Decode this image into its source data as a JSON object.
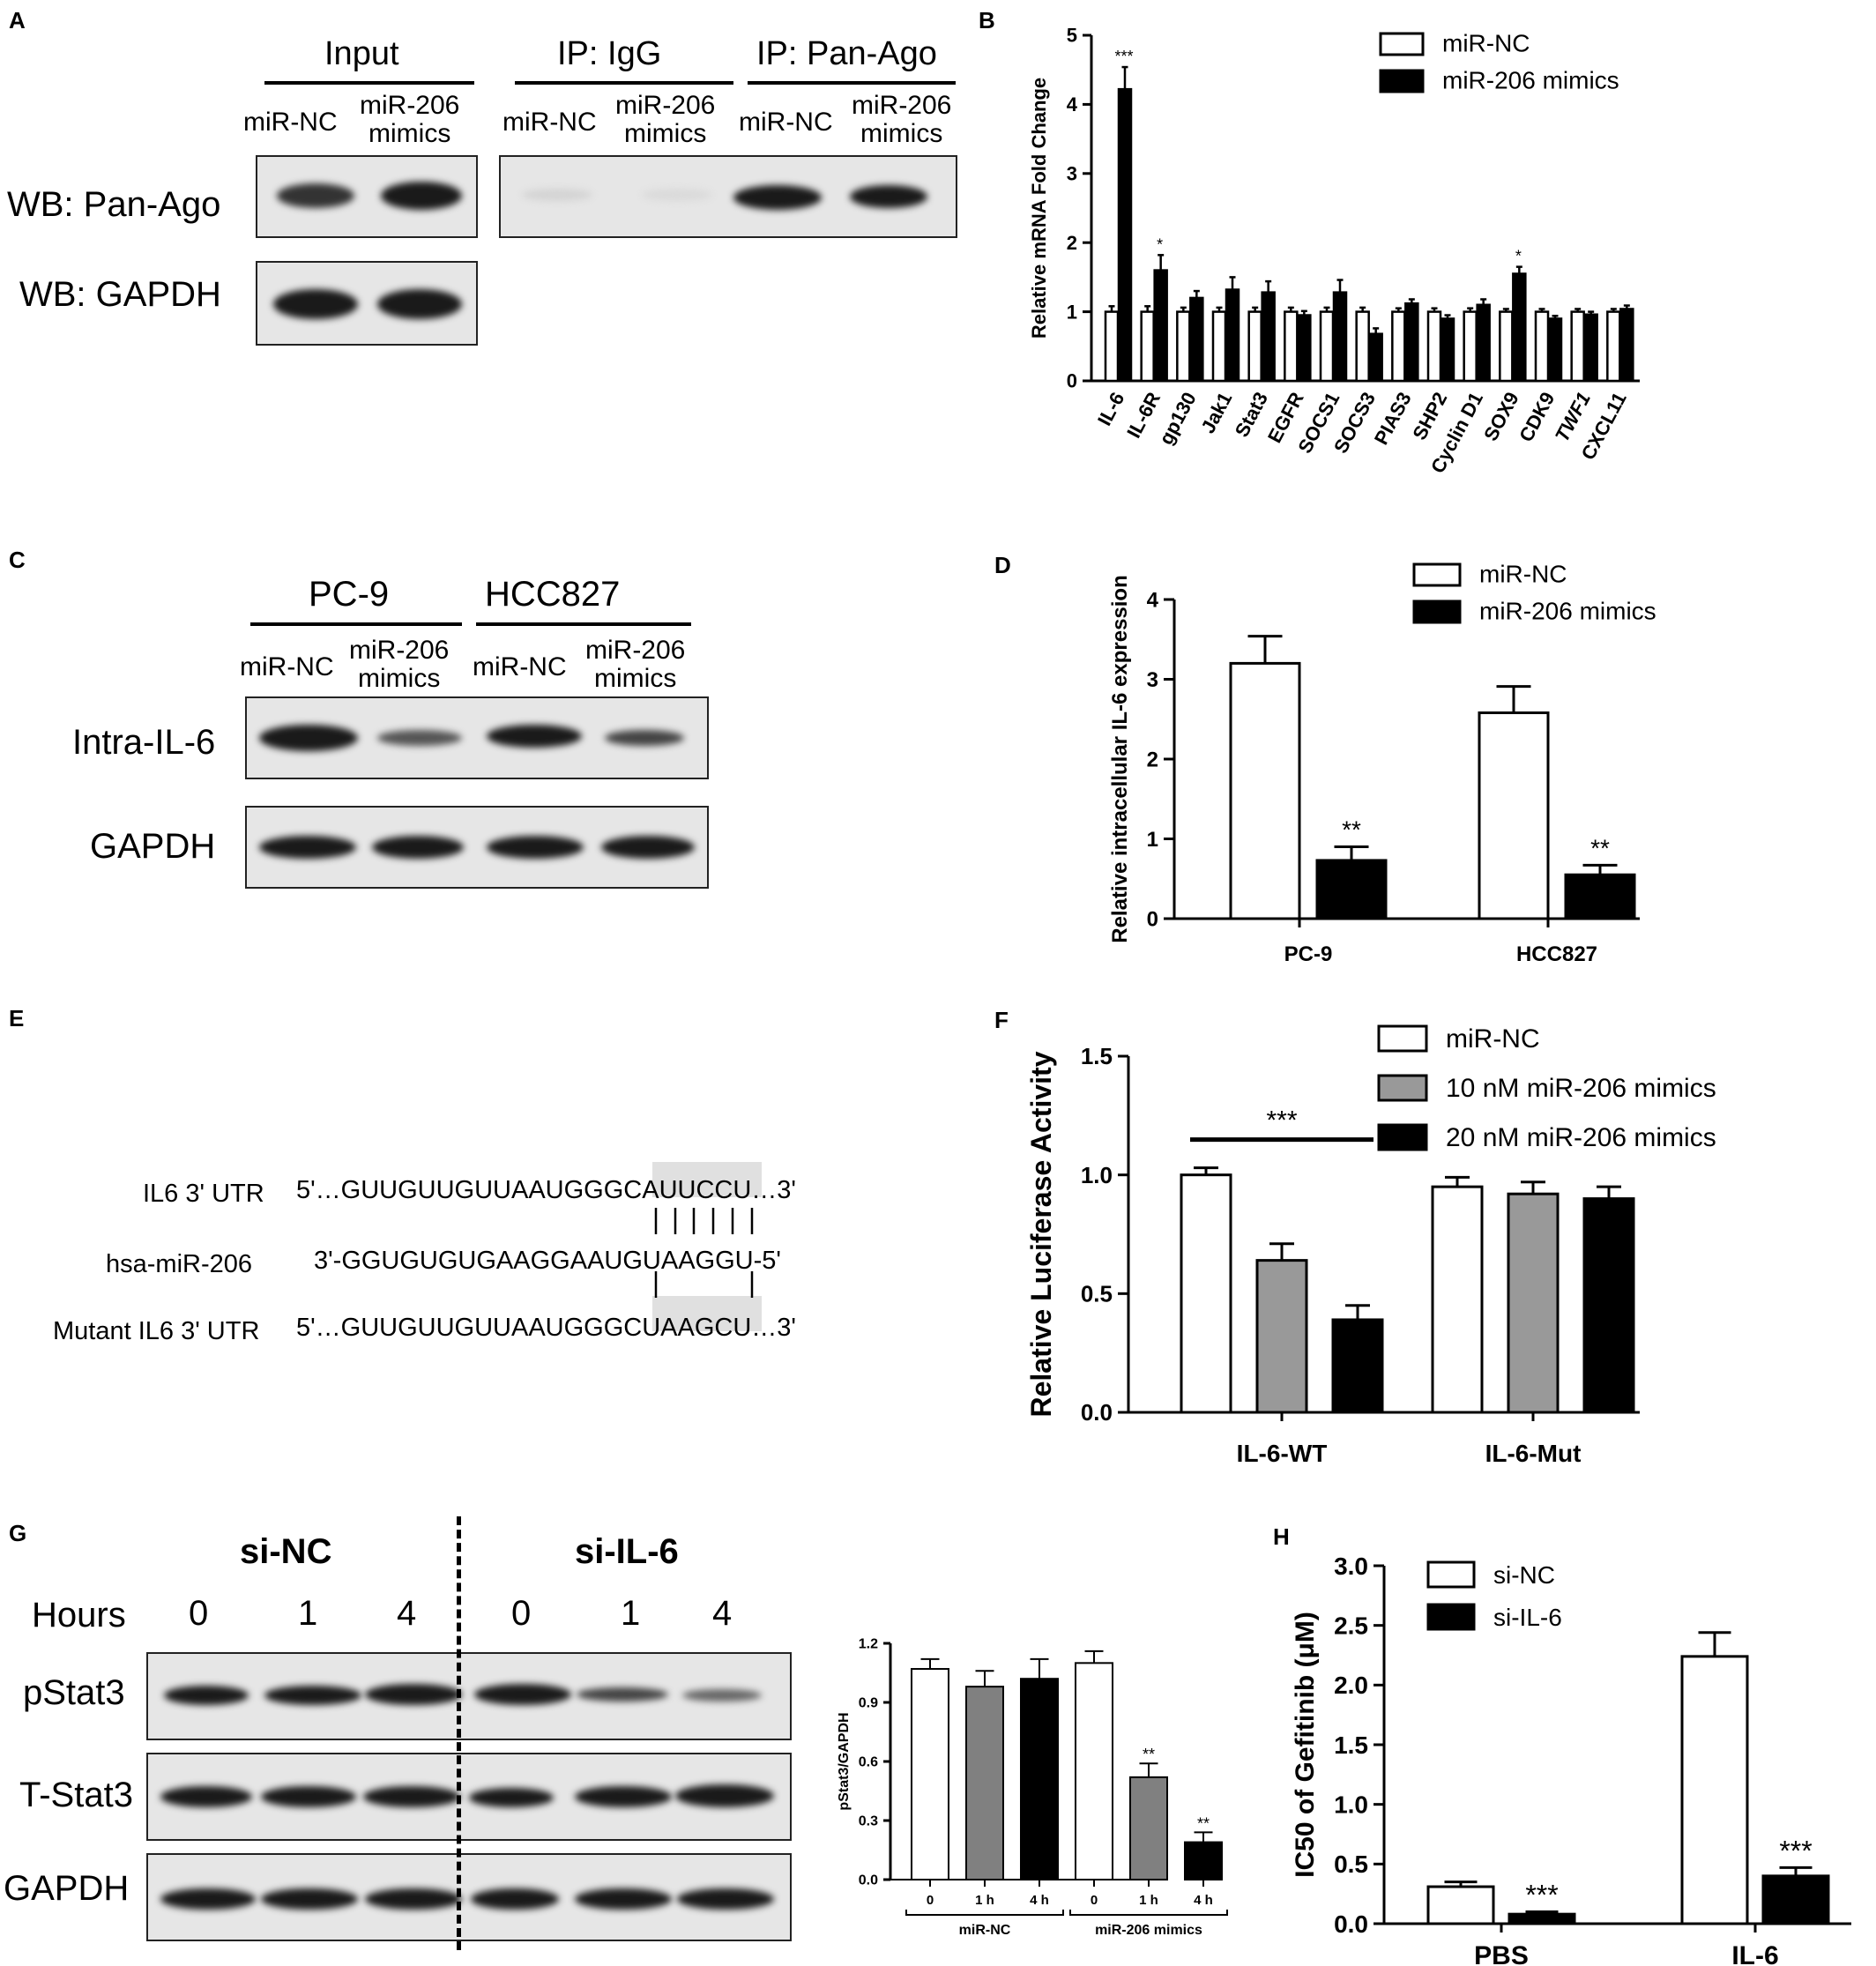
{
  "panel_A": {
    "letter": "A",
    "headers": [
      "Input",
      "IP: IgG",
      "IP: Pan-Ago"
    ],
    "lanes": [
      "miR-NC",
      "miR-206\nmimics",
      "miR-NC",
      "miR-206\nmimics",
      "miR-NC",
      "miR-206\nmimics"
    ],
    "rows": [
      "WB: Pan-Ago",
      "WB: GAPDH"
    ]
  },
  "panel_C": {
    "letter": "C",
    "headers": [
      "PC-9",
      "HCC827"
    ],
    "lanes": [
      "miR-NC",
      "miR-206\nmimics",
      "miR-NC",
      "miR-206\nmimics"
    ],
    "rows": [
      "Intra-IL-6",
      "GAPDH"
    ]
  },
  "panel_E": {
    "letter": "E",
    "rows": [
      {
        "label": "IL6 3' UTR",
        "seq": "5'…GUUGUUGUUAAUGGGCAUUCCU…3'"
      },
      {
        "label": "hsa-miR-206",
        "seq": "3'-GGUGUGUGAAGGAAUGUAAGGU-5'"
      },
      {
        "label": "Mutant IL6 3' UTR",
        "seq": "5'…GUUGUUGUUAAUGGGCUAAGCU…3'"
      }
    ]
  },
  "panel_G_blot": {
    "letter": "G",
    "groups": [
      "si-NC",
      "si-IL-6"
    ],
    "hours_label": "Hours",
    "hours": [
      "0",
      "1",
      "4",
      "0",
      "1",
      "4"
    ],
    "rows": [
      "pStat3",
      "T-Stat3",
      "GAPDH"
    ]
  },
  "panel_H_letter": "H",
  "chart_data": [
    {
      "id": "B",
      "type": "bar",
      "panel": "B",
      "ylabel": "Relative mRNA Fold Change",
      "ylim": [
        0,
        5
      ],
      "yticks": [
        0,
        1,
        2,
        3,
        4,
        5
      ],
      "categories": [
        "IL-6",
        "IL-6R",
        "gp130",
        "Jak1",
        "Stat3",
        "EGFR",
        "SOCS1",
        "SOCS3",
        "PIAS3",
        "SHP2",
        "Cyclin D1",
        "SOX9",
        "CDK9",
        "TWF1",
        "CXCL11"
      ],
      "italic_categories": [
        "TWF1"
      ],
      "series": [
        {
          "name": "miR-NC",
          "color": "#ffffff",
          "values": [
            1.0,
            1.0,
            1.0,
            1.0,
            1.0,
            1.0,
            1.0,
            1.0,
            1.0,
            1.0,
            1.0,
            1.0,
            1.0,
            1.0,
            1.0
          ],
          "errors": [
            0.08,
            0.08,
            0.06,
            0.06,
            0.06,
            0.06,
            0.06,
            0.06,
            0.05,
            0.05,
            0.05,
            0.04,
            0.04,
            0.04,
            0.04
          ]
        },
        {
          "name": "miR-206 mimics",
          "color": "#000000",
          "values": [
            4.22,
            1.6,
            1.2,
            1.32,
            1.28,
            0.95,
            1.28,
            0.68,
            1.12,
            0.9,
            1.1,
            1.55,
            0.9,
            0.96,
            1.04
          ],
          "errors": [
            0.32,
            0.22,
            0.1,
            0.18,
            0.16,
            0.06,
            0.18,
            0.08,
            0.06,
            0.05,
            0.08,
            0.1,
            0.04,
            0.04,
            0.05
          ]
        }
      ],
      "annotations": [
        {
          "index": 0,
          "text": "***"
        },
        {
          "index": 1,
          "text": "*"
        },
        {
          "index": 11,
          "text": "*"
        }
      ],
      "legend": "top-right"
    },
    {
      "id": "D",
      "type": "bar",
      "panel": "D",
      "ylabel": "Relative intracellular IL-6 expression",
      "ylim": [
        0,
        4
      ],
      "yticks": [
        0,
        1,
        2,
        3,
        4
      ],
      "categories": [
        "PC-9",
        "HCC827"
      ],
      "series": [
        {
          "name": "miR-NC",
          "color": "#ffffff",
          "values": [
            3.2,
            2.58
          ],
          "errors": [
            0.34,
            0.33
          ]
        },
        {
          "name": "miR-206 mimics",
          "color": "#000000",
          "values": [
            0.73,
            0.55
          ],
          "errors": [
            0.17,
            0.12
          ]
        }
      ],
      "annotations": [
        {
          "category": 0,
          "series": 1,
          "text": "**"
        },
        {
          "category": 1,
          "series": 1,
          "text": "**"
        }
      ],
      "legend": "top-right"
    },
    {
      "id": "F",
      "type": "bar",
      "panel": "F",
      "ylabel": "Relative Luciferase Activity",
      "ylim": [
        0,
        1.5
      ],
      "yticks": [
        "0.0",
        "0.5",
        "1.0",
        "1.5"
      ],
      "categories": [
        "IL-6-WT",
        "IL-6-Mut"
      ],
      "series": [
        {
          "name": "miR-NC",
          "color": "#ffffff",
          "values": [
            1.0,
            0.95
          ],
          "errors": [
            0.03,
            0.04
          ]
        },
        {
          "name": "10 nM miR-206 mimics",
          "color": "#999999",
          "values": [
            0.64,
            0.92
          ],
          "errors": [
            0.07,
            0.05
          ]
        },
        {
          "name": "20 nM miR-206 mimics",
          "color": "#000000",
          "values": [
            0.39,
            0.9
          ],
          "errors": [
            0.06,
            0.05
          ]
        }
      ],
      "annotations": [
        {
          "text": "***",
          "from": [
            0,
            0
          ],
          "to": [
            0,
            2
          ]
        }
      ],
      "legend": "top-right"
    },
    {
      "id": "G",
      "type": "bar",
      "panel": "G",
      "ylabel": "pStat3/GAPDH",
      "ylim": [
        0,
        1.2
      ],
      "yticks": [
        "0.0",
        "0.3",
        "0.6",
        "0.9",
        "1.2"
      ],
      "categories": [
        "0",
        "1 h",
        "4 h",
        "0",
        "1 h",
        "4 h"
      ],
      "groups": [
        {
          "label": "miR-NC",
          "range": [
            0,
            2
          ]
        },
        {
          "label": "miR-206 mimics",
          "range": [
            3,
            5
          ]
        }
      ],
      "values": [
        1.07,
        0.98,
        1.02,
        1.1,
        0.52,
        0.19
      ],
      "errors": [
        0.05,
        0.08,
        0.1,
        0.06,
        0.07,
        0.05
      ],
      "colors": [
        "#ffffff",
        "#808080",
        "#000000",
        "#ffffff",
        "#808080",
        "#000000"
      ],
      "annotations": [
        {
          "index": 4,
          "text": "**"
        },
        {
          "index": 5,
          "text": "**"
        }
      ]
    },
    {
      "id": "H",
      "type": "bar",
      "panel": "H",
      "ylabel": "IC50 of Gefitinib  (μM)",
      "ylim": [
        0,
        3.0
      ],
      "yticks": [
        "0.0",
        "0.5",
        "1.0",
        "1.5",
        "2.0",
        "2.5",
        "3.0"
      ],
      "categories": [
        "PBS",
        "IL-6"
      ],
      "series": [
        {
          "name": "si-NC",
          "color": "#ffffff",
          "values": [
            0.31,
            2.24
          ],
          "errors": [
            0.04,
            0.2
          ]
        },
        {
          "name": "si-IL-6",
          "color": "#000000",
          "values": [
            0.08,
            0.4
          ],
          "errors": [
            0.02,
            0.07
          ]
        }
      ],
      "annotations": [
        {
          "category": 0,
          "series": 1,
          "text": "***"
        },
        {
          "category": 1,
          "series": 1,
          "text": "***"
        }
      ],
      "legend": "top-left"
    }
  ]
}
